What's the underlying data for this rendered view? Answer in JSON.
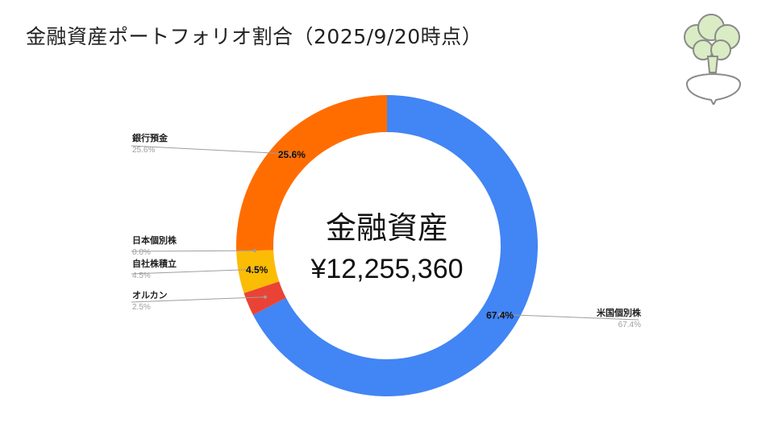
{
  "slide": {
    "title": "金融資産ポートフォリオ割合（2025/9/20時点）"
  },
  "chart_data": {
    "type": "pie",
    "center_title": "金融資産",
    "center_value": "¥12,255,360",
    "slices": [
      {
        "name": "米国個別株",
        "value": 67.4,
        "label": "67.4%",
        "color": "#4285f4"
      },
      {
        "name": "オルカン",
        "value": 2.5,
        "label": "2.5%",
        "color": "#ea4335"
      },
      {
        "name": "自社株積立",
        "value": 4.5,
        "label": "4.5%",
        "color": "#fbbc04"
      },
      {
        "name": "日本個別株",
        "value": 0.0,
        "label": "0.0%",
        "color": "#34a853"
      },
      {
        "name": "銀行預金",
        "value": 25.6,
        "label": "25.6%",
        "color": "#ff6d01"
      }
    ]
  },
  "logo": {
    "icon": "turnip-icon"
  }
}
